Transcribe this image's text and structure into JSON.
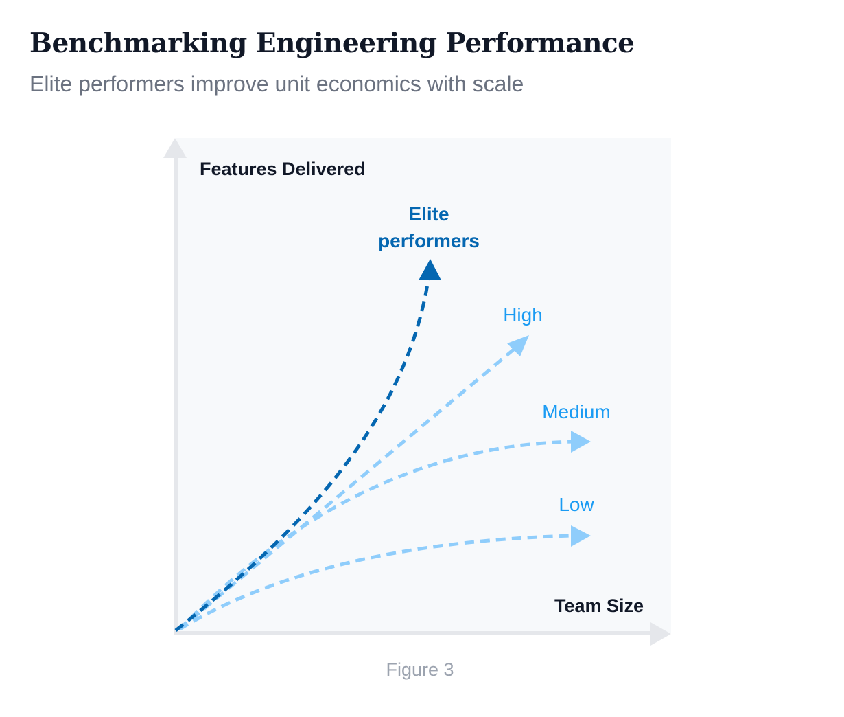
{
  "header": {
    "title": "Benchmarking Engineering Performance",
    "subtitle": "Elite performers improve unit economics with scale"
  },
  "diagram": {
    "y_axis_label": "Features Delivered",
    "x_axis_label": "Team Size",
    "series": [
      {
        "name_line1": "Elite",
        "name_line2": "performers",
        "color": "#0567b1"
      },
      {
        "name": "High",
        "color": "#8fcdfb"
      },
      {
        "name": "Medium",
        "color": "#8fcdfb"
      },
      {
        "name": "Low",
        "color": "#8fcdfb"
      }
    ],
    "label_color_light": "#1a9bf3",
    "axis_color": "#e5e7eb",
    "plot_background": "#f7f9fb"
  },
  "caption": "Figure 3"
}
